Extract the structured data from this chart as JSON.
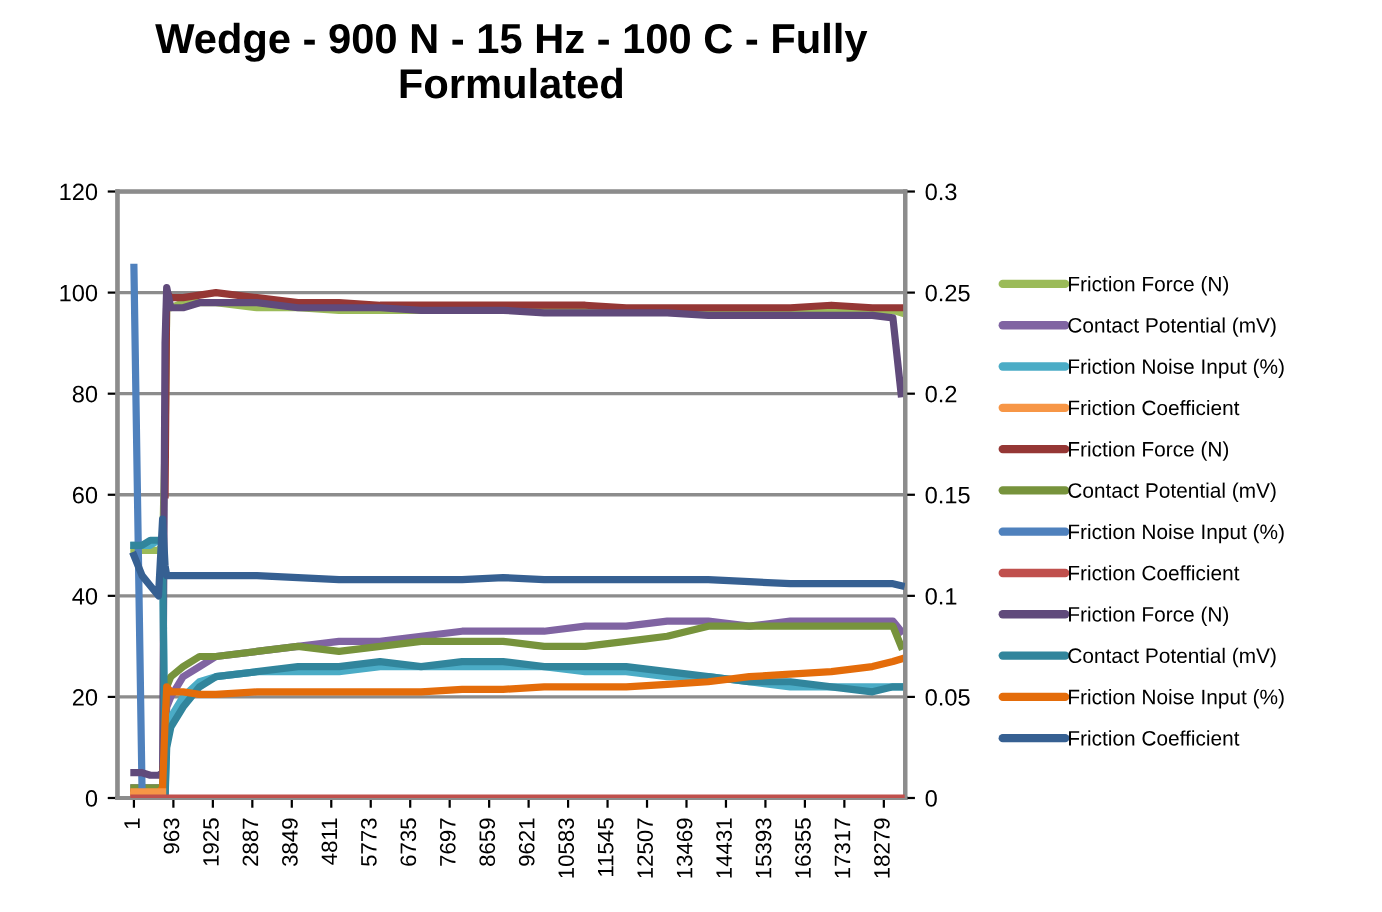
{
  "chart_data": {
    "type": "line",
    "title": "Wedge - 900 N - 15 Hz - 100 C - Fully Formulated",
    "x": [
      1,
      200,
      400,
      600,
      700,
      760,
      800,
      900,
      1200,
      1600,
      2000,
      3000,
      4000,
      5000,
      6000,
      7000,
      8000,
      9000,
      10000,
      11000,
      12000,
      13000,
      14000,
      15000,
      16000,
      17000,
      18000,
      18500,
      18700
    ],
    "series": [
      {
        "name": "Friction Force (N)",
        "color": "#9bbb59",
        "values": [
          49,
          49,
          49,
          49,
          50,
          70,
          97,
          97,
          98,
          98,
          98,
          97,
          97,
          96.5,
          96.5,
          96.5,
          96.5,
          97,
          97,
          97,
          96.5,
          96.5,
          96.5,
          96.5,
          96.5,
          96.5,
          96.5,
          96.5,
          96
        ]
      },
      {
        "name": "Contact Potential (mV)",
        "color": "#8064a2",
        "values": [
          2,
          2,
          2,
          2,
          2,
          10,
          18,
          20,
          24,
          26,
          28,
          29,
          30,
          31,
          31,
          32,
          33,
          33,
          33,
          34,
          34,
          35,
          35,
          34,
          35,
          35,
          35,
          35,
          33
        ]
      },
      {
        "name": "Friction Noise Input (%)",
        "color": "#4bacc6",
        "values": [
          50,
          50,
          50,
          51,
          51,
          1,
          12,
          16,
          20,
          23,
          24,
          25,
          25,
          25,
          26,
          26,
          26,
          26,
          26,
          25,
          25,
          24,
          24,
          23,
          22,
          22,
          22,
          22,
          22
        ]
      },
      {
        "name": "Friction Coefficient",
        "color": "#f79646",
        "axis": "y2",
        "values": [
          0.003,
          0.003,
          0.003,
          0.003,
          0.003,
          null,
          null,
          null,
          null,
          null,
          null,
          null,
          null,
          null,
          null,
          null,
          null,
          null,
          null,
          null,
          null,
          null,
          null,
          null,
          null,
          null,
          null,
          null,
          null
        ]
      },
      {
        "name": "Friction Force (N)",
        "color": "#953735",
        "values": [
          null,
          null,
          null,
          null,
          null,
          60,
          100,
          99,
          99,
          99.5,
          100,
          99,
          98,
          98,
          97.5,
          97.5,
          97.5,
          97.5,
          97.5,
          97.5,
          97,
          97,
          97,
          97,
          97,
          97.5,
          97,
          97,
          97
        ]
      },
      {
        "name": "Contact Potential (mV)",
        "color": "#77933c",
        "values": [
          2,
          2,
          2,
          2,
          2,
          15,
          22,
          24,
          26,
          28,
          28,
          29,
          30,
          29,
          30,
          31,
          31,
          31,
          30,
          30,
          31,
          32,
          34,
          34,
          34,
          34,
          34,
          34,
          30
        ]
      },
      {
        "name": "Friction Noise Input (%)",
        "color": "#4f81bd",
        "values": [
          105,
          1,
          1,
          1,
          1,
          1,
          null,
          null,
          null,
          null,
          null,
          null,
          null,
          null,
          null,
          null,
          null,
          null,
          null,
          null,
          null,
          null,
          null,
          null,
          null,
          null,
          null,
          null,
          null
        ]
      },
      {
        "name": "Friction Coefficient",
        "color": "#c0504d",
        "axis": "y2",
        "values": [
          0,
          0,
          0,
          0,
          0,
          0,
          0,
          0,
          0,
          0,
          0,
          0,
          0,
          0,
          0,
          0,
          0,
          0,
          0,
          0,
          0,
          0,
          0,
          0,
          0,
          0,
          0,
          0,
          0
        ]
      },
      {
        "name": "Friction Force (N)",
        "color": "#604a7b",
        "values": [
          5,
          5,
          4.5,
          4.5,
          5,
          90,
          101,
          97,
          97,
          98,
          98,
          98,
          97,
          97,
          97,
          96.5,
          96.5,
          96.5,
          96,
          96,
          96,
          96,
          95.5,
          95.5,
          95.5,
          95.5,
          95.5,
          95,
          80
        ]
      },
      {
        "name": "Contact Potential (mV)",
        "color": "#31859c",
        "values": [
          50,
          50,
          51,
          51,
          51,
          0,
          10,
          14,
          18,
          22,
          24,
          25,
          26,
          26,
          27,
          26,
          27,
          27,
          26,
          26,
          26,
          25,
          24,
          23,
          23,
          22,
          21,
          22,
          22
        ]
      },
      {
        "name": "Friction Noise Input (%)",
        "color": "#e46c0a",
        "values": [
          1,
          1,
          1,
          1,
          2,
          15,
          22,
          21,
          21,
          20.5,
          20.5,
          21,
          21,
          21,
          21,
          21,
          21.5,
          21.5,
          22,
          22,
          22,
          22.5,
          23,
          24,
          24.5,
          25,
          26,
          27,
          27.5
        ]
      },
      {
        "name": "Friction Coefficient",
        "color": "#366092",
        "axis": "y2",
        "values": [
          0.12,
          0.11,
          0.105,
          0.1,
          0.138,
          0.115,
          0.11,
          0.11,
          0.11,
          0.11,
          0.11,
          0.11,
          0.109,
          0.108,
          0.108,
          0.108,
          0.108,
          0.109,
          0.108,
          0.108,
          0.108,
          0.108,
          0.108,
          0.107,
          0.106,
          0.106,
          0.106,
          0.106,
          0.105
        ]
      }
    ],
    "xlim": [
      -400,
      18800
    ],
    "xticks": [
      {
        "value": 1,
        "label": "1"
      },
      {
        "value": 963,
        "label": "963"
      },
      {
        "value": 1925,
        "label": "1925"
      },
      {
        "value": 2887,
        "label": "2887"
      },
      {
        "value": 3849,
        "label": "3849"
      },
      {
        "value": 4811,
        "label": "4811"
      },
      {
        "value": 5773,
        "label": "5773"
      },
      {
        "value": 6735,
        "label": "6735"
      },
      {
        "value": 7697,
        "label": "7697"
      },
      {
        "value": 8659,
        "label": "8659"
      },
      {
        "value": 9621,
        "label": "9621"
      },
      {
        "value": 10583,
        "label": "10583"
      },
      {
        "value": 11545,
        "label": "11545"
      },
      {
        "value": 12507,
        "label": "12507"
      },
      {
        "value": 13469,
        "label": "13469"
      },
      {
        "value": 14431,
        "label": "14431"
      },
      {
        "value": 15393,
        "label": "15393"
      },
      {
        "value": 16355,
        "label": "16355"
      },
      {
        "value": 17317,
        "label": "17317"
      },
      {
        "value": 18279,
        "label": "18279"
      }
    ],
    "ylim": [
      0,
      120
    ],
    "yticks": [
      0,
      20,
      40,
      60,
      80,
      100,
      120
    ],
    "y2lim": [
      0,
      0.3
    ],
    "y2ticks": [
      0,
      0.05,
      0.1,
      0.15,
      0.2,
      0.25,
      0.3
    ],
    "grid": "y",
    "legend": "right",
    "marker": "none",
    "line_style": "solid"
  }
}
